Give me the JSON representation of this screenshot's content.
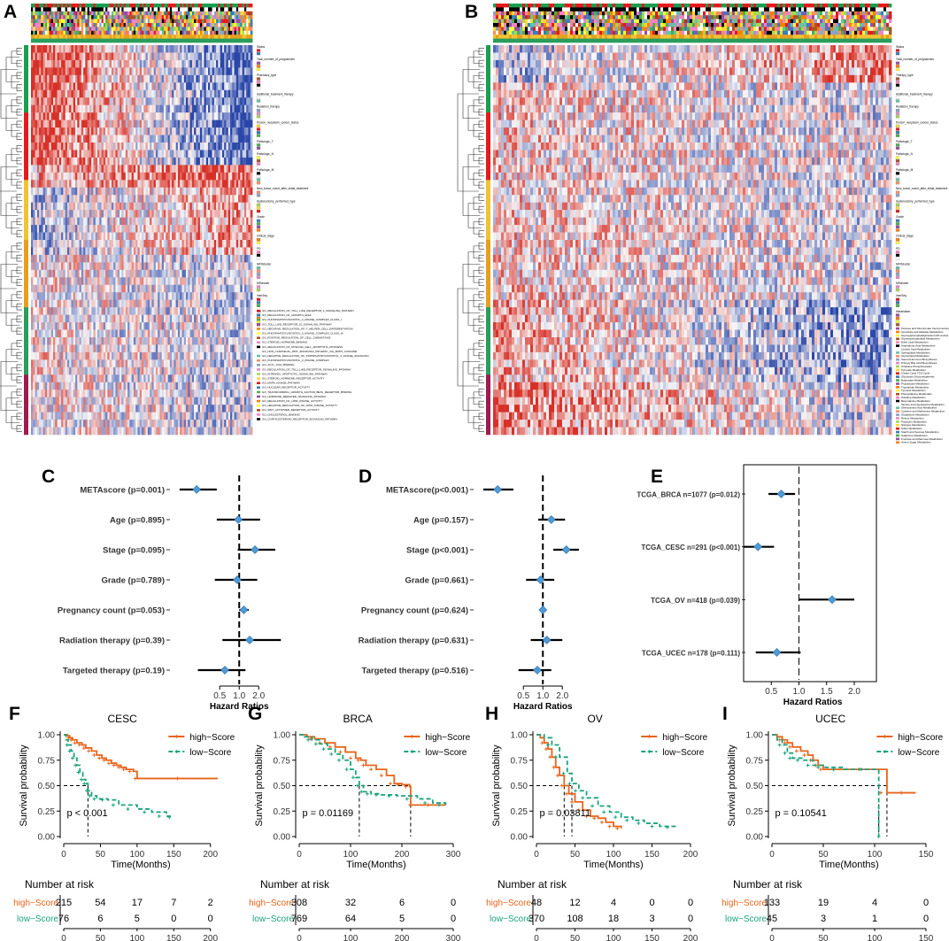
{
  "figure": {
    "panel_labels": [
      "A",
      "B",
      "C",
      "D",
      "E",
      "F",
      "G",
      "H",
      "I"
    ]
  },
  "colors": {
    "high": "#e8641b",
    "low": "#1aa37e",
    "diamond": "#4f9bd6",
    "heat_red": "#d73027",
    "heat_blue": "#2a46a8",
    "heat_white": "#f7f7f7"
  },
  "heatmap_a": {
    "legend_titles": [
      "Status",
      "Total_number_of_pregnancies",
      "Pharmacy_type",
      "Additional_treatment_therapy",
      "Radiation_therapy",
      "Person_neoplasm_cancer_status",
      "Pathologic_T",
      "Pathologic_N",
      "Pathologic_M",
      "New_tumor_event_after_initial_treatment",
      "Hysterectomy_performed_type",
      "Grade",
      "Clinical_stage",
      "PD",
      "MFRcluster",
      "MRcluster",
      "ImmSeq",
      "GO"
    ],
    "go_terms": [
      "GO_REGULATION_OF_TOLL_LIKE_RECEPTOR_4_SIGNALING_PATHWAY",
      "GO_REGULATION_OF_GROWTH_ENIA",
      "GO_PHOSPHATIDYLINOSITOL_3_KINASE_COMPLEX_CLASS_I",
      "GO_TOLL_LIKE_RECEPTOR_10_SIGNALING_PATHWAY",
      "GO_NEGATIVE_REGULATION_OF_T_HELPER_CELL_DIFFERENTIATION",
      "GO_PHOSPHATIDYLINOSITOL_3_KINASE_COMPLEX_CLASS_IA",
      "GO_POSITIVE_REGULATION_OF_CELL_CHEMOTAXIS",
      "GO_STEROID_HORMONE_BINDING",
      "GO_REGULATION_OF_MYELOID_CELL_APOPTOTIC_PROCESS",
      "GO_NON_CANONICAL_WNT_SIGNALING_PATHWAY_VIA_MAPK_CASCADE",
      "GO_NEGATIVE_REGULATION_OF_PHOSPHATIDYLINOSITOL_3_KINASE_SIGNALING",
      "GO_PHOSPHATIDYLINOSITOL_3_KINASE_COMPLEX",
      "GO_ACYL_COA_BINDING",
      "GO_REGULATION_OF_TOLL_LIKE_RECEPTOR_SIGNALING_PATHWAY",
      "GO_INTRINSIC_APOPTOTIC_SIGNALING_PATHWAY",
      "GO_STEROID_HORMONE_RECEPTOR_ACTIVITY",
      "GO_MAPK_KINASE_PATHWAY",
      "GO_NUCLEAR_RECEPTOR_ACTIVITY",
      "GO_TRANSFORMING_GROWTH_FACTOR_BETA_RECEPTOR_BINDING",
      "GO_HORMONE_MEDIATED_SIGNALING_PATHWAY",
      "GO_REGULATION_OF_LIPID_KINASE_ACTIVITY",
      "GO_NEGATIVE_REGULATION_OF_LIPID_KINASE_ACTIVITY",
      "GO_WNT_ACTIVATED_RECEPTOR_ACTIVITY",
      "GO_CHOLESTEROL_BINDING",
      "GO_CORTICOSTEROID_RECEPTOR_SIGNALING_PATHWAY"
    ]
  },
  "heatmap_b": {
    "legend_titles": [
      "Status",
      "Total_number_of_pregnancies",
      "Therapy_type",
      "Additional_treatment_therapy",
      "Radiation_therapy",
      "Person_neoplasm_cancer_status",
      "Pathologic_T",
      "Pathologic_N",
      "Pathologic_M",
      "New_tumor_event_after_initial_treatment",
      "Hysterectomy_performed_type",
      "Grade",
      "Clinical_stage",
      "PD",
      "MFRcluster",
      "MRcluster",
      "ImmSeq",
      "Metabolism"
    ],
    "metabolism_terms": [
      "Pentose and Glucuronate Interconversions",
      "Ascorbate and Aldarate Metabolism",
      "Glycosylphosphatidylinositol GPI anchor",
      "Glycerophospholipid Metabolism",
      "Ether Lipid Metabolism",
      "Arachidonic Acid Metabolism",
      "Linoleic Acid Metabolism",
      "Sphingolipid Metabolism",
      "Glycerolipid Metabolism",
      "Steroid Hormone Biosynthesis",
      "Primary Bile Acid Biosynthesis",
      "Oxidative Phosphorylation",
      "Pyruvate Metabolism",
      "Citrate Cycle TCA Cycle",
      "Glycolysis Gluconeogenesis",
      "Butanoate Metabolism",
      "Propanoate Metabolism",
      "Tryptophan Metabolism",
      "Tyrosine Metabolism",
      "Phenylalanine Metabolism",
      "Histidine Metabolism",
      "Beta Alanine Metabolism",
      "Taurine and Hypotaurine Metabolism",
      "Selenoamino Acid Metabolism",
      "Cysteine and Methionine Metabolism",
      "Glutathione Metabolism",
      "Retinol Metabolism",
      "Porphyrin Metabolism",
      "Nitrogen Metabolism",
      "Sulfur Metabolism",
      "Starch and Sucrose Metabolism",
      "Galactose Metabolism",
      "Fructose and Mannose Metabolism",
      "Amino Sugar Metabolism"
    ]
  },
  "chart_data": [
    {
      "panel": "C",
      "type": "forest",
      "xlabel": "Hazard Ratios",
      "ticks": [
        0.5,
        1.0,
        2.0
      ],
      "tick_labels": [
        "0.5",
        "1.0",
        "2.0"
      ],
      "xlim": [
        0.08,
        4.5
      ],
      "reference": 1.0,
      "rows": [
        {
          "label": "METAscore (p=0.001)",
          "hr": 0.22,
          "lo": 0.12,
          "hi": 0.45
        },
        {
          "label": "Age (p=0.895)",
          "hr": 0.97,
          "lo": 0.45,
          "hi": 2.1
        },
        {
          "label": "Stage (p=0.095)",
          "hr": 1.75,
          "lo": 0.95,
          "hi": 3.6
        },
        {
          "label": "Grade (p=0.789)",
          "hr": 0.93,
          "lo": 0.42,
          "hi": 1.9
        },
        {
          "label": "Pregnancy count (p=0.053)",
          "hr": 1.18,
          "lo": 1.0,
          "hi": 1.4
        },
        {
          "label": "Radiation therapy (p=0.39)",
          "hr": 1.45,
          "lo": 0.55,
          "hi": 4.4
        },
        {
          "label": "Targeted therapy (p=0.19)",
          "hr": 0.6,
          "lo": 0.23,
          "hi": 1.25
        }
      ]
    },
    {
      "panel": "D",
      "type": "forest",
      "xlabel": "Hazard Ratios",
      "ticks": [
        0.5,
        1.0,
        2.0
      ],
      "tick_labels": [
        "0.5",
        "1.0",
        "2.0"
      ],
      "xlim": [
        0.08,
        4.5
      ],
      "reference": 1.0,
      "rows": [
        {
          "label": "METAscore(p<0.001)",
          "hr": 0.2,
          "lo": 0.12,
          "hi": 0.35
        },
        {
          "label": "Age (p=0.157)",
          "hr": 1.35,
          "lo": 0.85,
          "hi": 2.2
        },
        {
          "label": "Stage (p<0.001)",
          "hr": 2.3,
          "lo": 1.45,
          "hi": 3.6
        },
        {
          "label": "Grade (p=0.661)",
          "hr": 0.92,
          "lo": 0.55,
          "hi": 1.5
        },
        {
          "label": "Pregnancy count (p=0.624)",
          "hr": 1.0,
          "lo": 0.93,
          "hi": 1.08
        },
        {
          "label": "Radiation therapy (p=0.631)",
          "hr": 1.15,
          "lo": 0.65,
          "hi": 2.0
        },
        {
          "label": "Targeted therapy (p=0.516)",
          "hr": 0.82,
          "lo": 0.42,
          "hi": 1.35
        }
      ]
    },
    {
      "panel": "E",
      "type": "forest",
      "xlabel": "Hazard Ratios",
      "ticks": [
        0.5,
        1.0,
        1.5,
        2.0
      ],
      "tick_labels": [
        "0.5",
        "1.0",
        "1.5",
        "2.0"
      ],
      "xlim": [
        0.0,
        2.4
      ],
      "reference": 1.0,
      "rows": [
        {
          "label": "TCGA_BRCA  n=1077  (p=0.012)",
          "hr": 0.68,
          "lo": 0.45,
          "hi": 0.93
        },
        {
          "label": "TCGA_CESC  n=291  (p<0.001)",
          "hr": 0.26,
          "lo": 0.0,
          "hi": 0.55
        },
        {
          "label": "TCGA_OV  n=418  (p=0.039)",
          "hr": 1.6,
          "lo": 1.0,
          "hi": 2.0
        },
        {
          "label": "TCGA_UCEC  n=178  (p=0.111)",
          "hr": 0.6,
          "lo": 0.22,
          "hi": 1.03
        }
      ]
    },
    {
      "panel": "F",
      "type": "survival",
      "title": "CESC",
      "xlabel": "Time(Months)",
      "ylabel": "Survival probability",
      "xlim": [
        0,
        210
      ],
      "xticks": [
        0,
        50,
        100,
        150,
        200
      ],
      "yticks": [
        "0.00",
        "0.25",
        "0.50",
        "0.75",
        "1.00"
      ],
      "pvalue": "p < 0.001",
      "median_lines": [
        {
          "x": 33
        }
      ],
      "series": [
        {
          "name": "high−Score",
          "points": [
            [
              0,
              1
            ],
            [
              5,
              0.99
            ],
            [
              8,
              0.97
            ],
            [
              12,
              0.95
            ],
            [
              18,
              0.92
            ],
            [
              25,
              0.9
            ],
            [
              30,
              0.87
            ],
            [
              38,
              0.84
            ],
            [
              45,
              0.8
            ],
            [
              52,
              0.77
            ],
            [
              58,
              0.75
            ],
            [
              65,
              0.72
            ],
            [
              72,
              0.7
            ],
            [
              78,
              0.68
            ],
            [
              85,
              0.66
            ],
            [
              95,
              0.64
            ],
            [
              100,
              0.57
            ],
            [
              210,
              0.57
            ]
          ]
        },
        {
          "name": "low−Score",
          "points": [
            [
              0,
              1
            ],
            [
              3,
              0.95
            ],
            [
              6,
              0.9
            ],
            [
              10,
              0.84
            ],
            [
              14,
              0.77
            ],
            [
              18,
              0.7
            ],
            [
              22,
              0.63
            ],
            [
              26,
              0.56
            ],
            [
              30,
              0.52
            ],
            [
              33,
              0.45
            ],
            [
              38,
              0.4
            ],
            [
              45,
              0.37
            ],
            [
              60,
              0.36
            ],
            [
              75,
              0.31
            ],
            [
              100,
              0.27
            ],
            [
              120,
              0.24
            ],
            [
              140,
              0.2
            ],
            [
              148,
              0.19
            ]
          ]
        }
      ],
      "risk_table": {
        "title": "Number at risk",
        "times": [
          "0",
          "50",
          "100",
          "150",
          "200"
        ],
        "high": [
          "215",
          "54",
          "17",
          "7",
          "2"
        ],
        "low": [
          "76",
          "6",
          "5",
          "0",
          "0"
        ]
      }
    },
    {
      "panel": "G",
      "type": "survival",
      "title": "BRCA",
      "xlabel": "Time(Months)",
      "ylabel": "Survival probability",
      "xlim": [
        0,
        300
      ],
      "xticks": [
        0,
        100,
        200,
        300
      ],
      "yticks": [
        "0.00",
        "0.25",
        "0.50",
        "0.75",
        "1.00"
      ],
      "pvalue": "p = 0.01169",
      "median_lines": [
        {
          "x": 117
        },
        {
          "x": 217
        }
      ],
      "series": [
        {
          "name": "high−Score",
          "points": [
            [
              0,
              1
            ],
            [
              15,
              0.98
            ],
            [
              30,
              0.96
            ],
            [
              50,
              0.92
            ],
            [
              70,
              0.88
            ],
            [
              90,
              0.83
            ],
            [
              110,
              0.77
            ],
            [
              120,
              0.75
            ],
            [
              130,
              0.7
            ],
            [
              150,
              0.66
            ],
            [
              170,
              0.6
            ],
            [
              185,
              0.52
            ],
            [
              200,
              0.51
            ],
            [
              215,
              0.49
            ],
            [
              217,
              0.31
            ],
            [
              285,
              0.31
            ]
          ]
        },
        {
          "name": "low−Score",
          "points": [
            [
              0,
              1
            ],
            [
              10,
              0.98
            ],
            [
              25,
              0.95
            ],
            [
              40,
              0.91
            ],
            [
              55,
              0.86
            ],
            [
              70,
              0.81
            ],
            [
              85,
              0.75
            ],
            [
              100,
              0.66
            ],
            [
              110,
              0.58
            ],
            [
              117,
              0.5
            ],
            [
              125,
              0.44
            ],
            [
              140,
              0.42
            ],
            [
              160,
              0.41
            ],
            [
              190,
              0.4
            ],
            [
              230,
              0.37
            ],
            [
              260,
              0.33
            ],
            [
              285,
              0.31
            ]
          ]
        }
      ],
      "risk_table": {
        "title": "Number at risk",
        "times": [
          "0",
          "100",
          "200",
          "300"
        ],
        "high": [
          "308",
          "32",
          "6",
          "0"
        ],
        "low": [
          "769",
          "64",
          "5",
          "0"
        ]
      }
    },
    {
      "panel": "H",
      "type": "survival",
      "title": "OV",
      "xlabel": "Time(Months)",
      "ylabel": "Survival probability",
      "xlim": [
        0,
        200
      ],
      "xticks": [
        0,
        50,
        100,
        150,
        200
      ],
      "yticks": [
        "0.00",
        "0.25",
        "0.50",
        "0.75",
        "1.00"
      ],
      "pvalue": "p = 0.03811",
      "median_lines": [
        {
          "x": 36
        },
        {
          "x": 46
        }
      ],
      "series": [
        {
          "name": "high−Score",
          "points": [
            [
              0,
              1
            ],
            [
              5,
              0.97
            ],
            [
              10,
              0.92
            ],
            [
              15,
              0.86
            ],
            [
              20,
              0.78
            ],
            [
              25,
              0.68
            ],
            [
              30,
              0.6
            ],
            [
              36,
              0.5
            ],
            [
              42,
              0.42
            ],
            [
              50,
              0.34
            ],
            [
              60,
              0.26
            ],
            [
              70,
              0.2
            ],
            [
              80,
              0.18
            ],
            [
              90,
              0.14
            ],
            [
              100,
              0.1
            ],
            [
              110,
              0.08
            ]
          ]
        },
        {
          "name": "low−Score",
          "points": [
            [
              0,
              1
            ],
            [
              10,
              0.97
            ],
            [
              20,
              0.9
            ],
            [
              30,
              0.78
            ],
            [
              40,
              0.62
            ],
            [
              46,
              0.52
            ],
            [
              55,
              0.45
            ],
            [
              65,
              0.38
            ],
            [
              80,
              0.3
            ],
            [
              95,
              0.24
            ],
            [
              110,
              0.19
            ],
            [
              125,
              0.16
            ],
            [
              140,
              0.13
            ],
            [
              160,
              0.1
            ],
            [
              180,
              0.09
            ]
          ]
        }
      ],
      "risk_table": {
        "title": "Number at risk",
        "times": [
          "0",
          "50",
          "100",
          "150",
          "200"
        ],
        "high": [
          "48",
          "12",
          "4",
          "0",
          "0"
        ],
        "low": [
          "370",
          "108",
          "18",
          "3",
          "0"
        ]
      }
    },
    {
      "panel": "I",
      "type": "survival",
      "title": "UCEC",
      "xlabel": "Time(Months)",
      "ylabel": "Survival probability",
      "xlim": [
        0,
        150
      ],
      "xticks": [
        0,
        50,
        100,
        150
      ],
      "yticks": [
        "0.00",
        "0.25",
        "0.50",
        "0.75",
        "1.00"
      ],
      "pvalue": "p = 0.10541",
      "median_lines": [
        {
          "x": 104
        },
        {
          "x": 112
        }
      ],
      "series": [
        {
          "name": "high−Score",
          "points": [
            [
              0,
              1
            ],
            [
              5,
              0.98
            ],
            [
              10,
              0.95
            ],
            [
              15,
              0.92
            ],
            [
              20,
              0.88
            ],
            [
              28,
              0.84
            ],
            [
              35,
              0.8
            ],
            [
              40,
              0.75
            ],
            [
              45,
              0.7
            ],
            [
              50,
              0.66
            ],
            [
              70,
              0.66
            ],
            [
              100,
              0.66
            ],
            [
              112,
              0.43
            ],
            [
              140,
              0.43
            ]
          ]
        },
        {
          "name": "low−Score",
          "points": [
            [
              0,
              1
            ],
            [
              5,
              0.95
            ],
            [
              10,
              0.9
            ],
            [
              15,
              0.82
            ],
            [
              20,
              0.77
            ],
            [
              30,
              0.75
            ],
            [
              40,
              0.7
            ],
            [
              50,
              0.68
            ],
            [
              70,
              0.66
            ],
            [
              104,
              0.66
            ],
            [
              104,
              0.0
            ]
          ]
        }
      ],
      "risk_table": {
        "title": "Number at risk",
        "times": [
          "0",
          "50",
          "100",
          "150"
        ],
        "high": [
          "133",
          "19",
          "4",
          "0"
        ],
        "low": [
          "45",
          "3",
          "1",
          "0"
        ]
      }
    }
  ]
}
